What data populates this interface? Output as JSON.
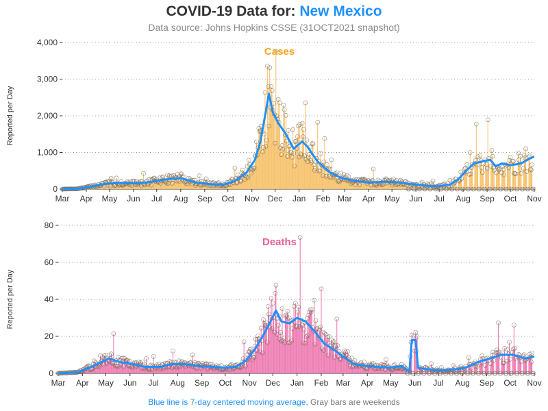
{
  "header": {
    "title_prefix": "COVID-19 Data for: ",
    "title_state": "New Mexico",
    "subtitle": "Data source: Johns Hopkins CSSE (31OCT2021 snapshot)"
  },
  "footer": {
    "note_blue": "Blue line is 7-day centered moving average,",
    "note_gray": " Gray bars are weekends"
  },
  "colors": {
    "cases": "#f5a623",
    "cases_bar": "#f6c26b",
    "deaths": "#e8609a",
    "deaths_bar": "#ee7cb2",
    "moving_average": "#1e90ff",
    "weekend": "#9a9a9a",
    "marker": "#7a6a5a"
  },
  "chart_data": [
    {
      "type": "bar",
      "label": "Cases",
      "ylabel": "Reported per Day",
      "ylim": [
        0,
        4000
      ],
      "yticks": [
        "0",
        "1,000",
        "2,000",
        "3,000",
        "4,000"
      ],
      "x_tick_labels": [
        "Mar",
        "Apr",
        "May",
        "Jun",
        "Jul",
        "Aug",
        "Sep",
        "Oct",
        "Nov",
        "Dec",
        "Jan",
        "Feb",
        "Mar",
        "Apr",
        "May",
        "Jun",
        "Jul",
        "Aug",
        "Sep",
        "Oct",
        "Nov"
      ],
      "grid": "horizontal dotted",
      "x_start": "2020-03-01",
      "x_end": "2021-11-01",
      "moving_average_knots": [
        [
          "2020-03-01",
          0
        ],
        [
          "2020-03-20",
          5
        ],
        [
          "2020-04-05",
          60
        ],
        [
          "2020-04-25",
          140
        ],
        [
          "2020-05-15",
          170
        ],
        [
          "2020-06-05",
          150
        ],
        [
          "2020-06-25",
          200
        ],
        [
          "2020-07-15",
          270
        ],
        [
          "2020-08-01",
          300
        ],
        [
          "2020-08-20",
          180
        ],
        [
          "2020-09-10",
          130
        ],
        [
          "2020-09-25",
          120
        ],
        [
          "2020-10-10",
          220
        ],
        [
          "2020-10-25",
          450
        ],
        [
          "2020-11-05",
          800
        ],
        [
          "2020-11-12",
          1300
        ],
        [
          "2020-11-18",
          2000
        ],
        [
          "2020-11-23",
          2600
        ],
        [
          "2020-11-28",
          2100
        ],
        [
          "2020-12-05",
          1800
        ],
        [
          "2020-12-15",
          1500
        ],
        [
          "2020-12-25",
          1100
        ],
        [
          "2021-01-05",
          1300
        ],
        [
          "2021-01-12",
          1150
        ],
        [
          "2021-01-25",
          750
        ],
        [
          "2021-02-10",
          450
        ],
        [
          "2021-02-25",
          300
        ],
        [
          "2021-03-15",
          220
        ],
        [
          "2021-04-01",
          180
        ],
        [
          "2021-04-20",
          200
        ],
        [
          "2021-05-05",
          190
        ],
        [
          "2021-05-25",
          140
        ],
        [
          "2021-06-15",
          90
        ],
        [
          "2021-07-01",
          80
        ],
        [
          "2021-07-15",
          120
        ],
        [
          "2021-07-25",
          250
        ],
        [
          "2021-08-05",
          500
        ],
        [
          "2021-08-15",
          700
        ],
        [
          "2021-08-25",
          750
        ],
        [
          "2021-09-05",
          800
        ],
        [
          "2021-09-12",
          620
        ],
        [
          "2021-09-20",
          700
        ],
        [
          "2021-10-01",
          650
        ],
        [
          "2021-10-15",
          700
        ],
        [
          "2021-10-25",
          820
        ],
        [
          "2021-10-31",
          880
        ]
      ]
    },
    {
      "type": "bar",
      "label": "Deaths",
      "ylabel": "Reported per Day",
      "ylim": [
        0,
        80
      ],
      "yticks": [
        "0",
        "20",
        "40",
        "60",
        "80"
      ],
      "x_tick_labels": [
        "Mar",
        "Apr",
        "May",
        "Jun",
        "Jul",
        "Aug",
        "Sep",
        "Oct",
        "Nov",
        "Dec",
        "Jan",
        "Feb",
        "Mar",
        "Apr",
        "May",
        "Jun",
        "Jul",
        "Aug",
        "Sep",
        "Oct",
        "Nov"
      ],
      "grid": "horizontal dotted",
      "x_start": "2020-03-01",
      "x_end": "2021-11-01",
      "moving_average_knots": [
        [
          "2020-03-01",
          0
        ],
        [
          "2020-03-25",
          0.5
        ],
        [
          "2020-04-10",
          3
        ],
        [
          "2020-04-25",
          6
        ],
        [
          "2020-05-05",
          8
        ],
        [
          "2020-05-20",
          6
        ],
        [
          "2020-06-05",
          5
        ],
        [
          "2020-06-20",
          3.5
        ],
        [
          "2020-07-10",
          3.5
        ],
        [
          "2020-07-25",
          5
        ],
        [
          "2020-08-10",
          5
        ],
        [
          "2020-08-25",
          4
        ],
        [
          "2020-09-15",
          3.5
        ],
        [
          "2020-10-01",
          3
        ],
        [
          "2020-10-15",
          3.5
        ],
        [
          "2020-10-28",
          7
        ],
        [
          "2020-11-08",
          13
        ],
        [
          "2020-11-18",
          20
        ],
        [
          "2020-11-28",
          28
        ],
        [
          "2020-12-05",
          34
        ],
        [
          "2020-12-12",
          28
        ],
        [
          "2020-12-22",
          27
        ],
        [
          "2021-01-01",
          30
        ],
        [
          "2021-01-12",
          28
        ],
        [
          "2021-01-25",
          22
        ],
        [
          "2021-02-05",
          16
        ],
        [
          "2021-02-20",
          12
        ],
        [
          "2021-03-01",
          9
        ],
        [
          "2021-03-15",
          5
        ],
        [
          "2021-04-01",
          4
        ],
        [
          "2021-04-15",
          3.5
        ],
        [
          "2021-05-01",
          3
        ],
        [
          "2021-05-15",
          4
        ],
        [
          "2021-05-25",
          1
        ],
        [
          "2021-05-28",
          18
        ],
        [
          "2021-06-02",
          18
        ],
        [
          "2021-06-05",
          3
        ],
        [
          "2021-06-20",
          2
        ],
        [
          "2021-07-05",
          1.5
        ],
        [
          "2021-07-20",
          2
        ],
        [
          "2021-08-05",
          3
        ],
        [
          "2021-08-20",
          6
        ],
        [
          "2021-09-05",
          8
        ],
        [
          "2021-09-20",
          10
        ],
        [
          "2021-10-05",
          10
        ],
        [
          "2021-10-20",
          8
        ],
        [
          "2021-10-31",
          9
        ]
      ]
    }
  ]
}
